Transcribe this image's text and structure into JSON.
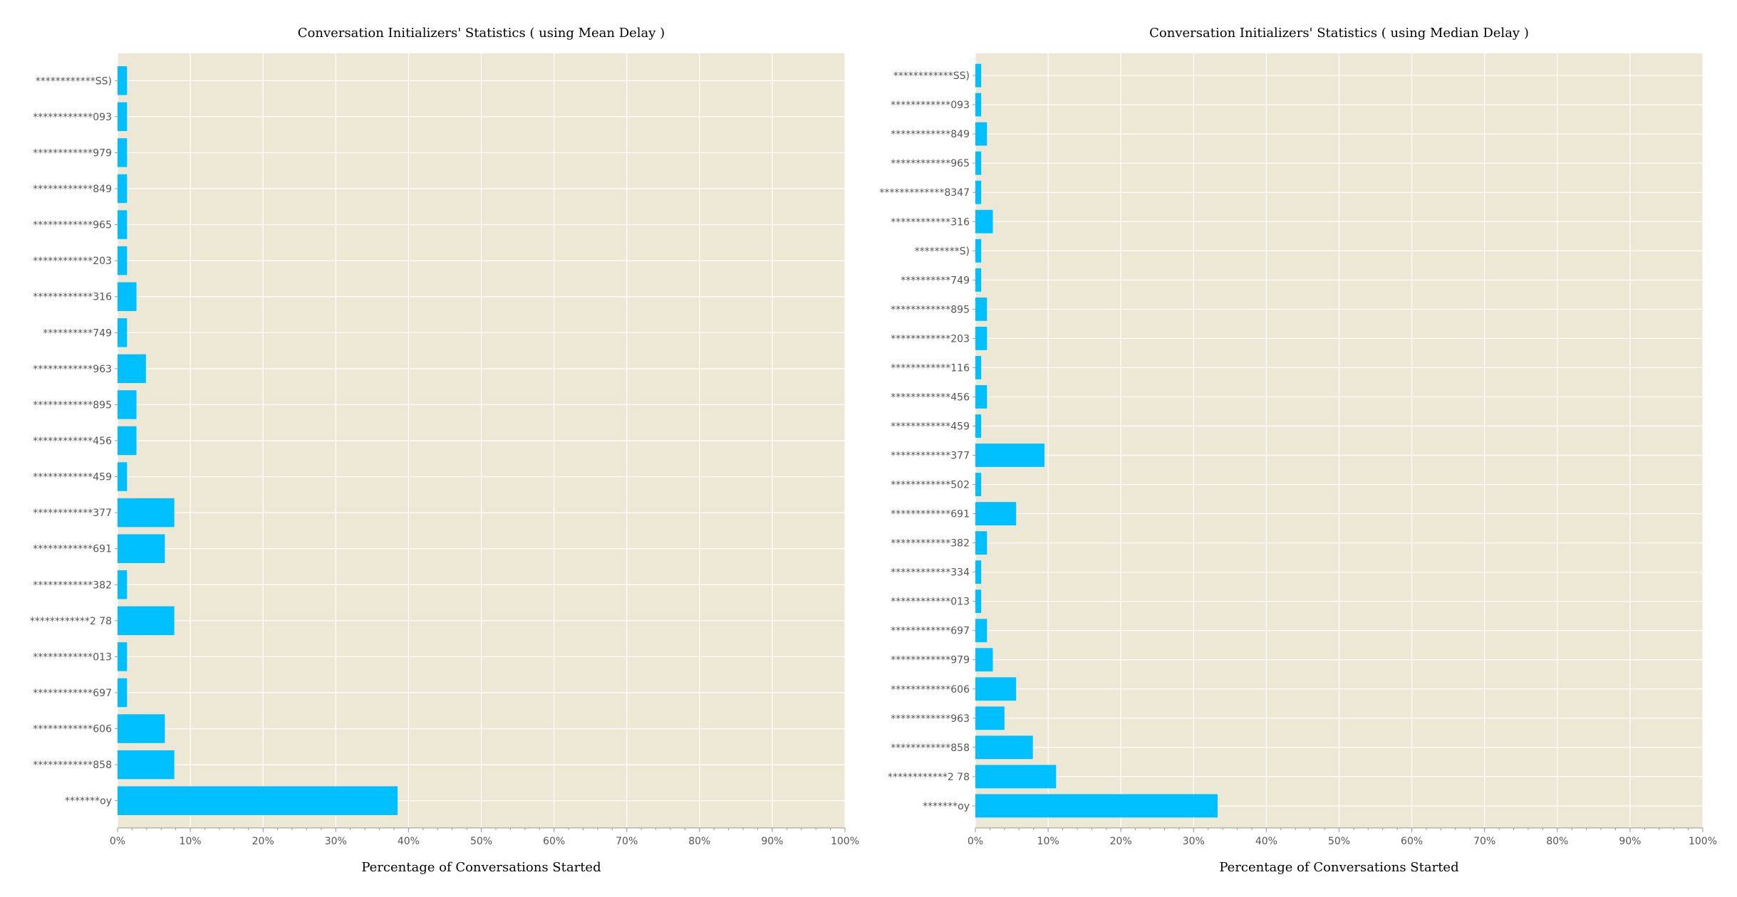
{
  "colors": {
    "bar": "#00BFFF",
    "plot_background": "#EDE7D6",
    "grid": "#FFFFFF",
    "text": "#555555",
    "axis": "#999999"
  },
  "chart_data": [
    {
      "type": "bar",
      "orientation": "horizontal",
      "title": "Conversation Initializers' Statistics ( using Mean Delay )",
      "xlabel": "Percentage of Conversations Started",
      "ylabel": "",
      "xlim": [
        0,
        100
      ],
      "xticks": [
        "0%",
        "10%",
        "20%",
        "30%",
        "40%",
        "50%",
        "60%",
        "70%",
        "80%",
        "90%",
        "100%"
      ],
      "grid": true,
      "categories": [
        "************SS)",
        "************093",
        "************979",
        "************849",
        "************965",
        "************203",
        "************316",
        "**********749",
        "************963",
        "************895",
        "************456",
        "************459",
        "************377",
        "************691",
        "************382",
        "************2 78",
        "************013",
        "************697",
        "************606",
        "************858",
        "*******oy"
      ],
      "values": [
        1.3,
        1.3,
        1.3,
        1.3,
        1.3,
        1.3,
        2.6,
        1.3,
        3.9,
        2.6,
        2.6,
        1.3,
        7.8,
        6.5,
        1.3,
        7.8,
        1.3,
        1.3,
        6.5,
        7.8,
        38.5
      ]
    },
    {
      "type": "bar",
      "orientation": "horizontal",
      "title": "Conversation Initializers' Statistics ( using Median Delay )",
      "xlabel": "Percentage of Conversations Started",
      "ylabel": "",
      "xlim": [
        0,
        100
      ],
      "xticks": [
        "0%",
        "10%",
        "20%",
        "30%",
        "40%",
        "50%",
        "60%",
        "70%",
        "80%",
        "90%",
        "100%"
      ],
      "grid": true,
      "categories": [
        "************SS)",
        "************093",
        "************849",
        "************965",
        "*************8347",
        "************316",
        "*********S)",
        "**********749",
        "************895",
        "************203",
        "************116",
        "************456",
        "************459",
        "************377",
        "************502",
        "************691",
        "************382",
        "************334",
        "************013",
        "************697",
        "************979",
        "************606",
        "************963",
        "************858",
        "************2 78",
        "*******oy"
      ],
      "values": [
        0.8,
        0.8,
        1.6,
        0.8,
        0.8,
        2.4,
        0.8,
        0.8,
        1.6,
        1.6,
        0.8,
        1.6,
        0.8,
        9.5,
        0.8,
        5.6,
        1.6,
        0.8,
        0.8,
        1.6,
        2.4,
        5.6,
        4.0,
        7.9,
        11.1,
        33.3
      ]
    }
  ]
}
